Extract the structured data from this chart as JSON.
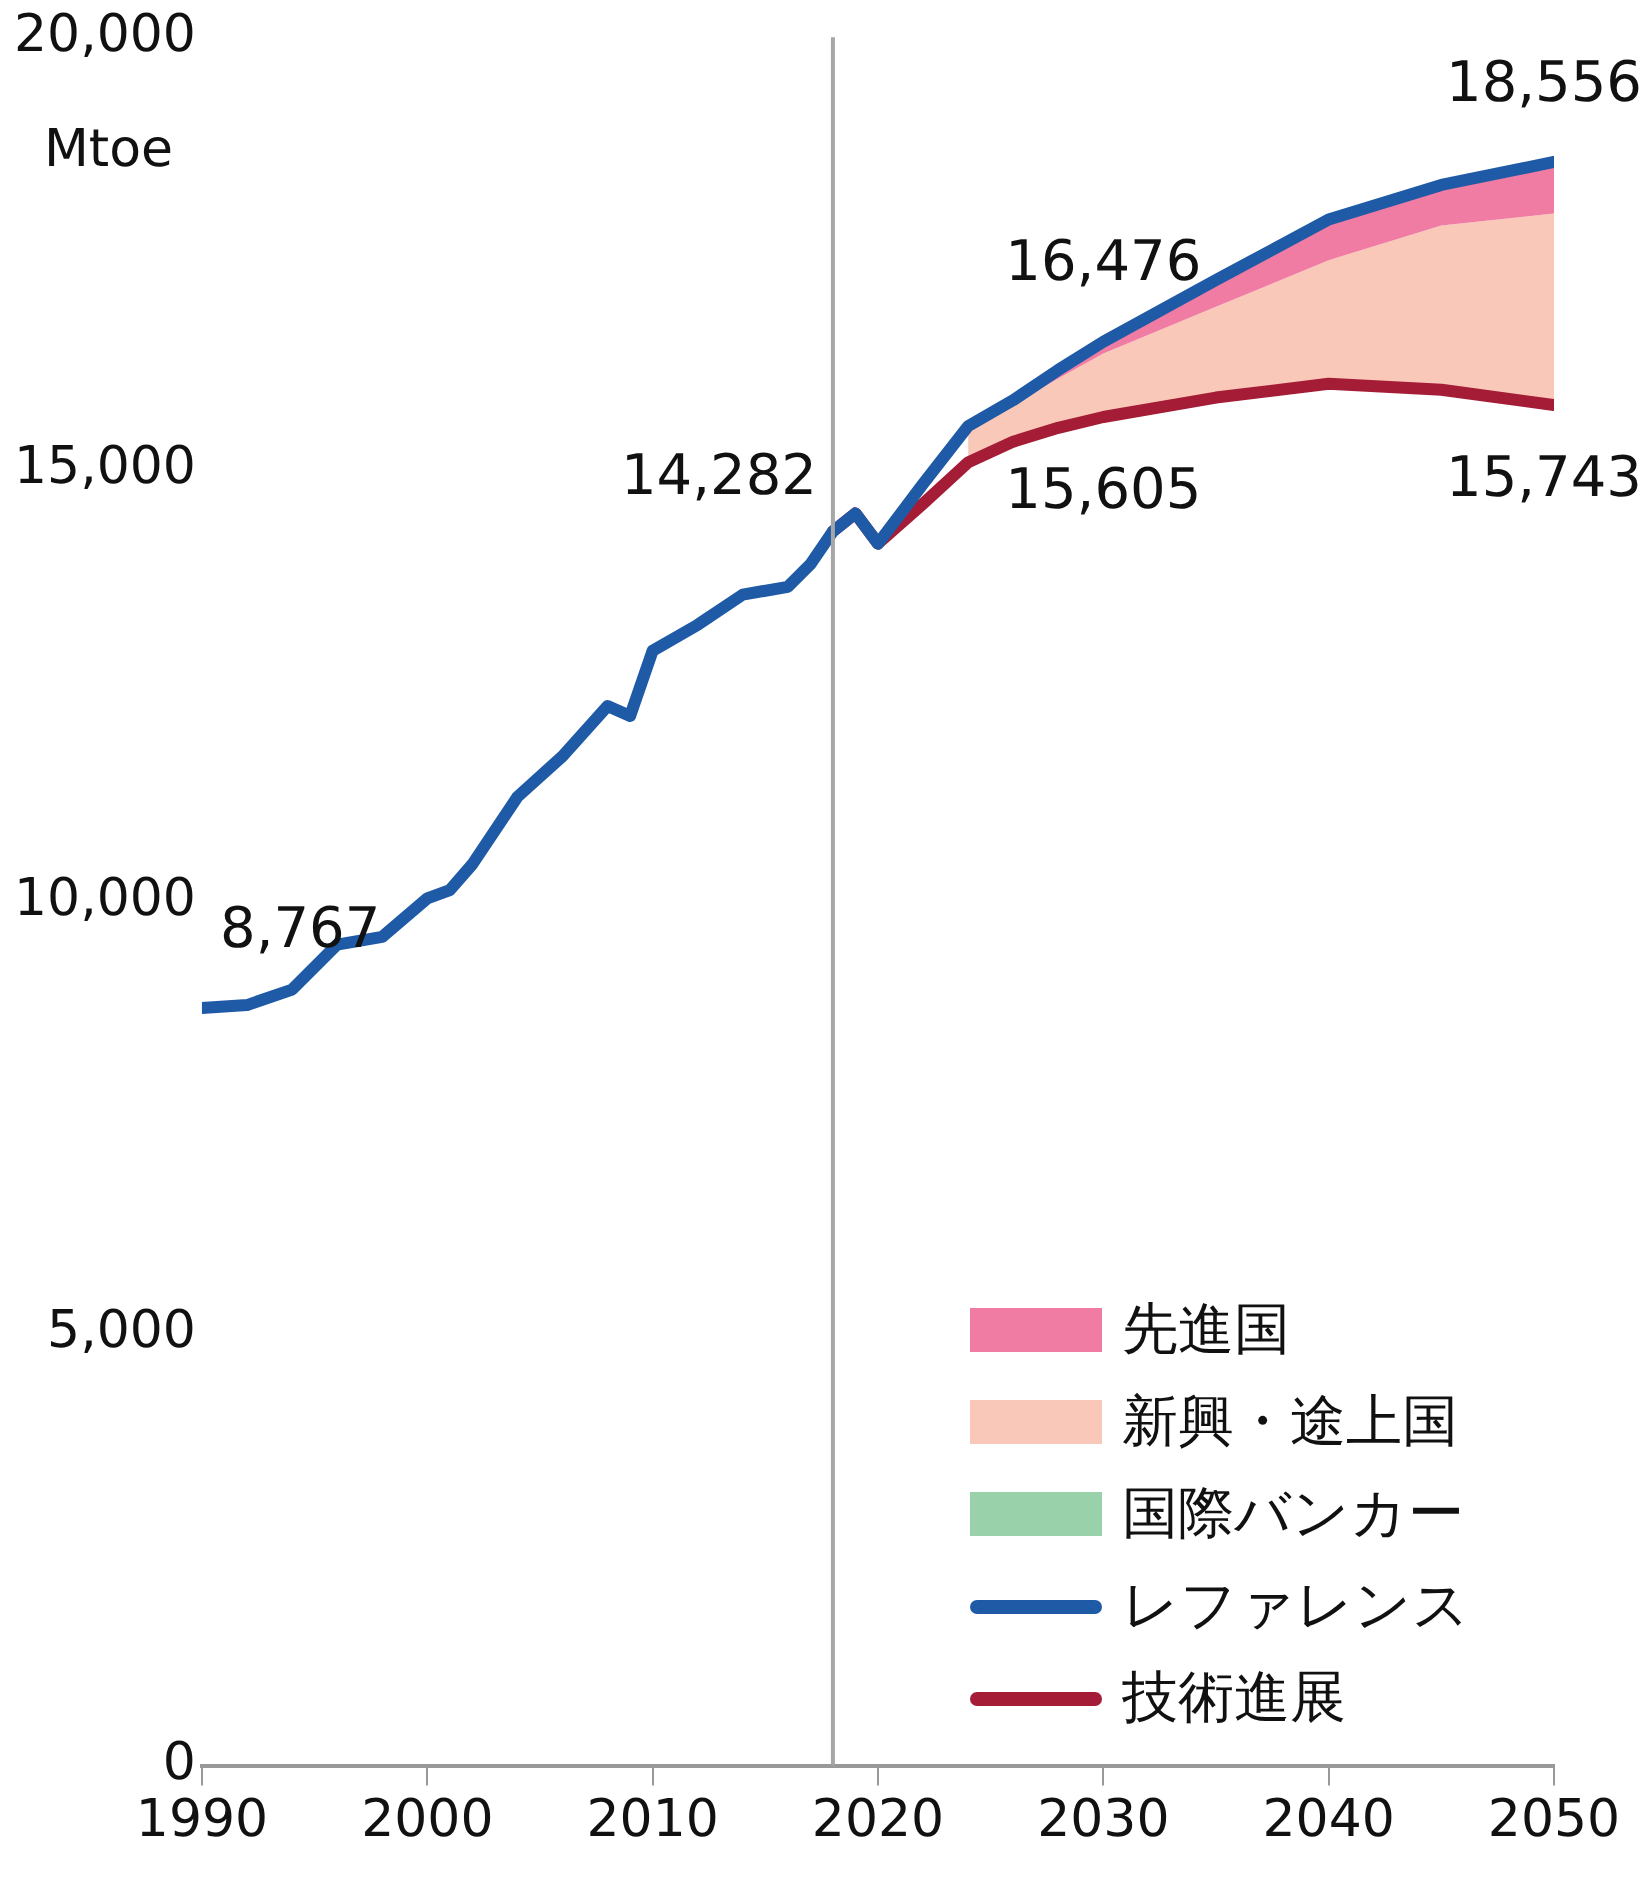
{
  "chart_data": {
    "type": "line",
    "ylabel": "Mtoe",
    "xlim": [
      1990,
      2050
    ],
    "xticks": [
      1990,
      2000,
      2010,
      2020,
      2030,
      2040,
      2050
    ],
    "ylim": [
      0,
      20000
    ],
    "yticks": [
      0,
      {
        "value": 5000,
        "label": "5,000"
      },
      {
        "value": 10000,
        "label": "10,000"
      },
      {
        "value": 15000,
        "label": "15,000"
      },
      {
        "value": 20000,
        "label": "20,000"
      }
    ],
    "grid": false,
    "legend": "bottom right",
    "marker": "none",
    "line_style": "solid",
    "ref_lines": [
      {
        "axis": "x",
        "value": 2018,
        "color": "#a6a6a6"
      }
    ],
    "annotations": [
      {
        "text": "8,767",
        "x": 1990,
        "y": 8767
      },
      {
        "text": "14,282",
        "x": 2018,
        "y": 14282
      },
      {
        "text": "16,476",
        "x": 2030,
        "y": 16476
      },
      {
        "text": "15,605",
        "x": 2030,
        "y": 15605
      },
      {
        "text": "18,556",
        "x": 2050,
        "y": 18556
      },
      {
        "text": "15,743",
        "x": 2050,
        "y": 15743
      }
    ],
    "series": [
      {
        "name": "先進国",
        "type": "area",
        "color": "#f17ca3",
        "x": [
          2024,
          2026,
          2028,
          2030,
          2035,
          2040,
          2045,
          2050
        ],
        "values": [
          15500,
          15800,
          16150,
          16476,
          17190,
          17890,
          18290,
          18556
        ]
      },
      {
        "name": "新興・途上国",
        "type": "area",
        "color": "#f9c8b8",
        "x": [
          2024,
          2026,
          2028,
          2030,
          2035,
          2040,
          2045,
          2050
        ],
        "values": [
          15500,
          15750,
          16050,
          16340,
          16880,
          17420,
          17820,
          17960
        ]
      },
      {
        "name": "国際バンカー",
        "type": "area",
        "color": "#98d1aa"
      },
      {
        "name": "レファレンス",
        "type": "line",
        "color": "#1f5aa6",
        "x": [
          1990,
          1992,
          1994,
          1996,
          1998,
          2000,
          2001,
          2002,
          2004,
          2006,
          2008,
          2009,
          2010,
          2012,
          2014,
          2016,
          2017,
          2018,
          2019,
          2020,
          2022,
          2024,
          2026,
          2028,
          2030,
          2035,
          2040,
          2045,
          2050
        ],
        "values": [
          8767,
          8800,
          8980,
          9500,
          9590,
          10035,
          10130,
          10430,
          11210,
          11680,
          12260,
          12145,
          12900,
          13200,
          13550,
          13640,
          13900,
          14282,
          14490,
          14140,
          14830,
          15500,
          15800,
          16150,
          16476,
          17190,
          17890,
          18290,
          18556
        ]
      },
      {
        "name": "技術進展",
        "type": "line",
        "color": "#a51c36",
        "x": [
          2018,
          2019,
          2020,
          2022,
          2024,
          2026,
          2028,
          2030,
          2035,
          2040,
          2045,
          2050
        ],
        "values": [
          14282,
          14490,
          14140,
          14600,
          15080,
          15320,
          15480,
          15605,
          15830,
          15990,
          15920,
          15743
        ]
      }
    ]
  }
}
